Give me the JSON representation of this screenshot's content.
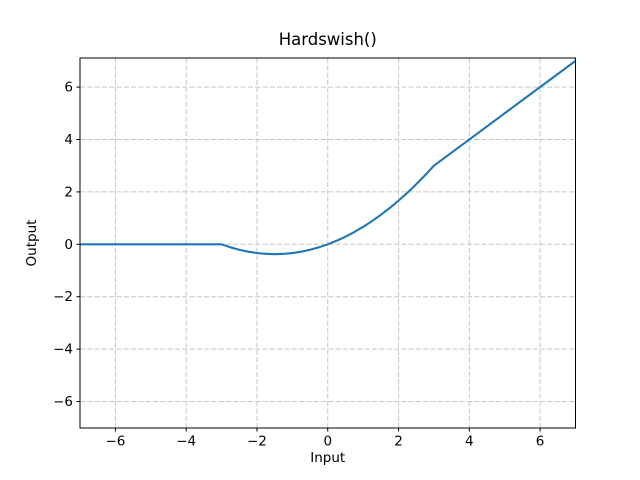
{
  "figure": {
    "background_color": "#ffffff",
    "spine_color": "#000000",
    "grid_color": "#c6c6c6",
    "tick_color": "#000000"
  },
  "chart_data": {
    "type": "line",
    "title": "Hardswish()",
    "xlabel": "Input",
    "ylabel": "Output",
    "xlim": [
      -7,
      7
    ],
    "ylim": [
      -7.01,
      7.11
    ],
    "xticks": [
      -6,
      -4,
      -2,
      0,
      2,
      4,
      6
    ],
    "yticks": [
      -6,
      -4,
      -2,
      0,
      2,
      4,
      6
    ],
    "grid": true,
    "grid_style": "dashed",
    "legend": null,
    "series": [
      {
        "name": "Hardswish",
        "color": "#1f77b4",
        "x": [
          -7,
          -3,
          -2.75,
          -2.5,
          -2.25,
          -2,
          -1.75,
          -1.5,
          -1.25,
          -1,
          -0.75,
          -0.5,
          -0.25,
          0,
          0.25,
          0.5,
          0.75,
          1,
          1.25,
          1.5,
          1.75,
          2,
          2.25,
          2.5,
          2.75,
          3,
          7
        ],
        "y": [
          0,
          0,
          -0.1146,
          -0.2083,
          -0.2813,
          -0.3333,
          -0.3646,
          -0.375,
          -0.3646,
          -0.3333,
          -0.2813,
          -0.2083,
          -0.1146,
          0,
          0.1354,
          0.2917,
          0.4688,
          0.6667,
          0.8854,
          1.125,
          1.3854,
          1.6667,
          1.9688,
          2.2917,
          2.6354,
          3,
          7
        ]
      }
    ]
  }
}
